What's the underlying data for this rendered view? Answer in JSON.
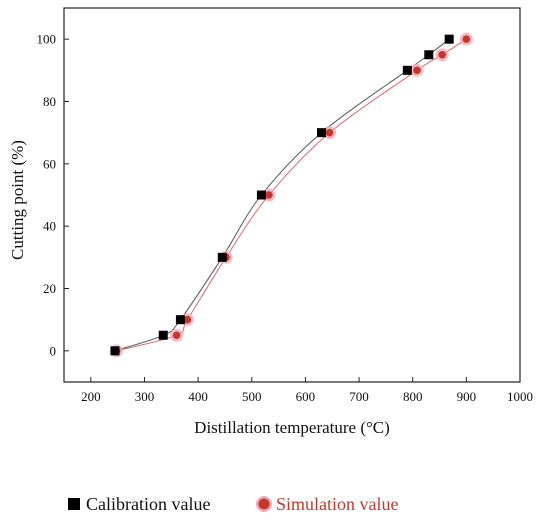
{
  "chart_data": {
    "type": "scatter",
    "title": "",
    "xlabel": "Distillation temperature (°C)",
    "ylabel": "Cutting point (%)",
    "xlim": [
      150,
      1000
    ],
    "ylim": [
      -10,
      110
    ],
    "x_ticks": [
      200,
      300,
      400,
      500,
      600,
      700,
      800,
      900,
      1000
    ],
    "y_ticks": [
      0,
      20,
      40,
      60,
      80,
      100
    ],
    "grid": false,
    "legend_position": "bottom",
    "series": [
      {
        "name": "Calibration value",
        "marker": "square",
        "color": "#000000",
        "curve_color": "#555555",
        "points": [
          {
            "x": 245,
            "y": 0
          },
          {
            "x": 335,
            "y": 5
          },
          {
            "x": 367,
            "y": 10
          },
          {
            "x": 445,
            "y": 30
          },
          {
            "x": 518,
            "y": 50
          },
          {
            "x": 630,
            "y": 70
          },
          {
            "x": 790,
            "y": 90
          },
          {
            "x": 830,
            "y": 95
          },
          {
            "x": 868,
            "y": 100
          }
        ]
      },
      {
        "name": "Simulation value",
        "marker": "circle",
        "color": "#c0392b",
        "halo_color": "#f4a9b8",
        "curve_color": "#d9686e",
        "points": [
          {
            "x": 248,
            "y": 0
          },
          {
            "x": 360,
            "y": 5
          },
          {
            "x": 380,
            "y": 10
          },
          {
            "x": 452,
            "y": 30
          },
          {
            "x": 532,
            "y": 50
          },
          {
            "x": 645,
            "y": 70
          },
          {
            "x": 808,
            "y": 90
          },
          {
            "x": 855,
            "y": 95
          },
          {
            "x": 900,
            "y": 100
          }
        ]
      }
    ]
  }
}
